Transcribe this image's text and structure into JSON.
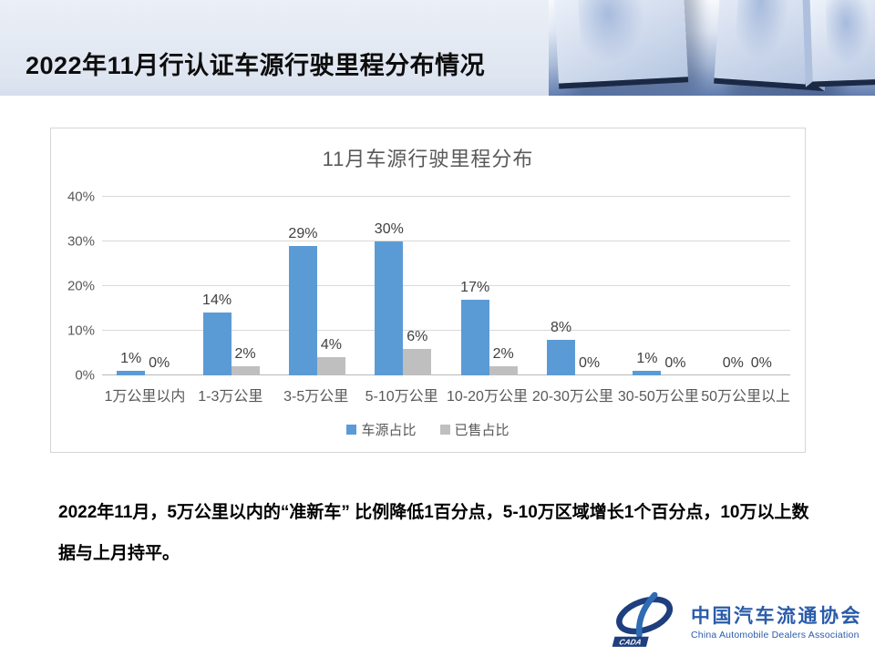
{
  "header": {
    "title": "2022年11月行认证车源行驶里程分布情况"
  },
  "chart_data": {
    "type": "bar",
    "title": "11月车源行驶里程分布",
    "categories": [
      "1万公里以内",
      "1-3万公里",
      "3-5万公里",
      "5-10万公里",
      "10-20万公里",
      "20-30万公里",
      "30-50万公里",
      "50万公里以上"
    ],
    "series": [
      {
        "name": "车源占比",
        "color": "#5b9bd5",
        "values": [
          1,
          14,
          29,
          30,
          17,
          8,
          1,
          0
        ]
      },
      {
        "name": "已售占比",
        "color": "#bfbfbf",
        "values": [
          0,
          2,
          4,
          6,
          2,
          0,
          0,
          0
        ]
      }
    ],
    "xlabel": "",
    "ylabel": "",
    "ylim": [
      0,
      40
    ],
    "yticks": [
      0,
      10,
      20,
      30,
      40
    ],
    "ytick_labels": [
      "0%",
      "10%",
      "20%",
      "30%",
      "40%"
    ],
    "value_suffix": "%",
    "grid": true,
    "legend_position": "bottom"
  },
  "commentary": "2022年11月，5万公里以内的“准新车” 比例降低1百分点，5-10万区域增长1个百分点，10万以上数据与上月持平。",
  "logo": {
    "cn": "中国汽车流通协会",
    "en": "China Automobile Dealers Association",
    "emblem": "CADA",
    "navy": "#1e3e7d",
    "blue": "#2f6cb3"
  }
}
